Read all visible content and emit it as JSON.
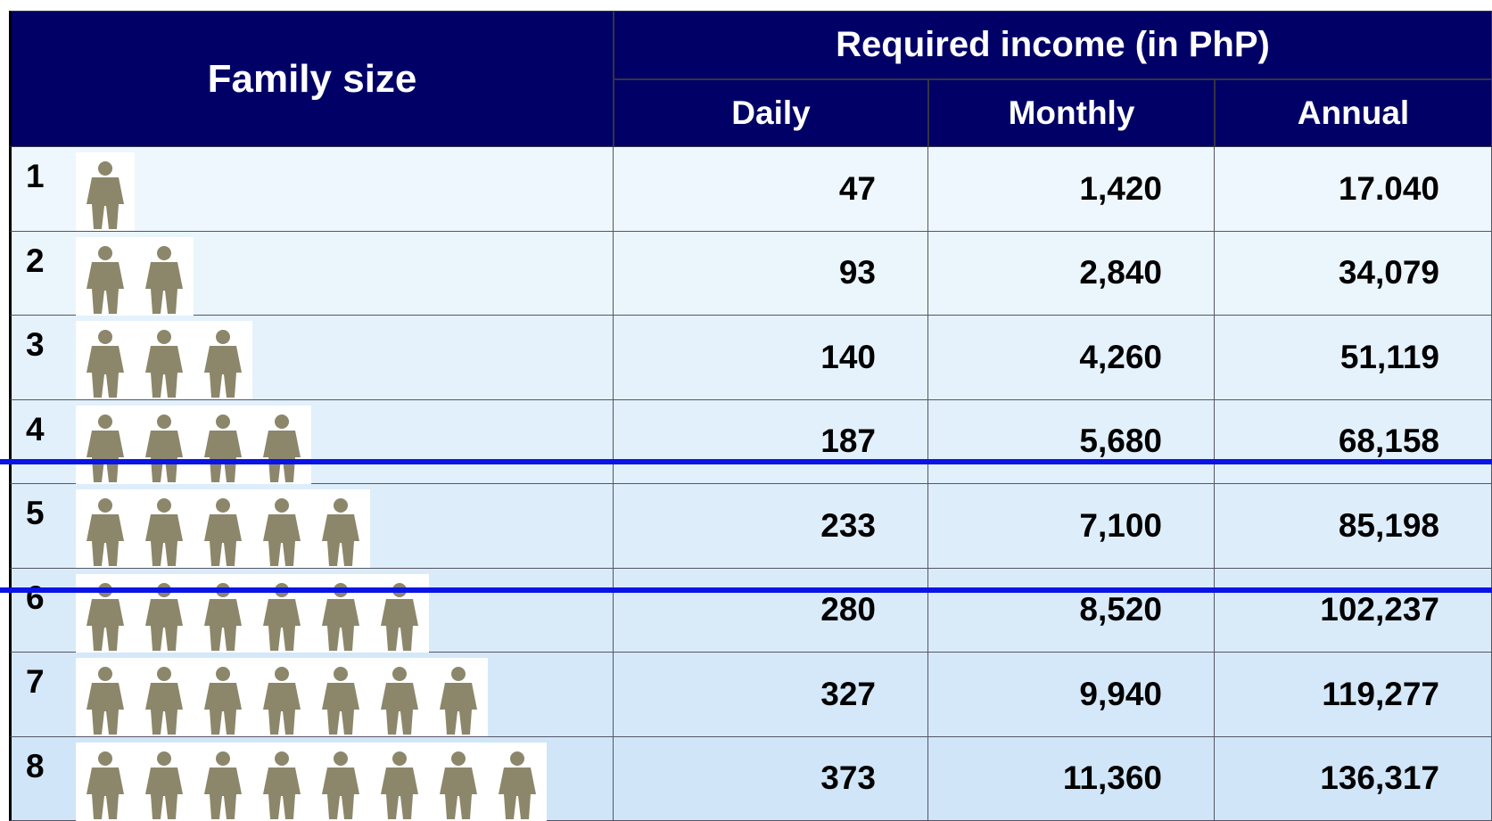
{
  "header": {
    "row_label": "Family size",
    "group": "Required income (in PhP)",
    "columns": [
      "Daily",
      "Monthly",
      "Annual"
    ]
  },
  "table": {
    "rows": [
      [
        "1",
        "47",
        "1,420",
        "17.040"
      ],
      [
        "2",
        "93",
        "2,840",
        "34,079"
      ],
      [
        "3",
        "140",
        "4,260",
        "51,119"
      ],
      [
        "4",
        "187",
        "5,680",
        "68,158"
      ],
      [
        "5",
        "233",
        "7,100",
        "85,198"
      ],
      [
        "6",
        "280",
        "8,520",
        "102,237"
      ],
      [
        "7",
        "327",
        "9,940",
        "119,277"
      ],
      [
        "8",
        "373",
        "11,360",
        "136,317"
      ]
    ]
  }
}
